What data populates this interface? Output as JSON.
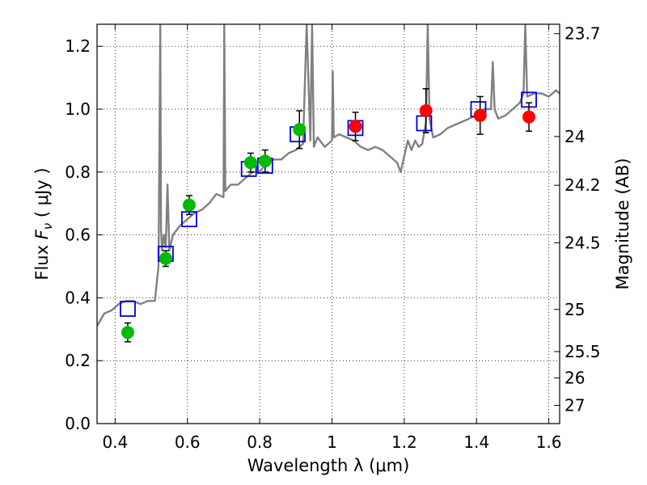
{
  "chart_data": {
    "type": "scatter",
    "xlabel": "Wavelength  λ (μm)",
    "ylabel": "Flux  F_ν  ( μJy )",
    "ylabel_parts": {
      "prefix": "Flux  ",
      "symbol": "F",
      "subscript": "ν",
      "suffix": "  ( μJy )"
    },
    "ylabel_right": "Magnitude (AB)",
    "xlim": [
      0.35,
      1.63
    ],
    "ylim": [
      0.0,
      1.27
    ],
    "grid": true,
    "x_ticks": [
      0.4,
      0.6,
      0.8,
      1.0,
      1.2,
      1.4,
      1.6
    ],
    "x_tick_labels": [
      "0.4",
      "0.6",
      "0.8",
      "1",
      "1.2",
      "1.4",
      "1.6"
    ],
    "y_ticks": [
      0.0,
      0.2,
      0.4,
      0.6,
      0.8,
      1.0,
      1.2
    ],
    "y_tick_labels": [
      "0.0",
      "0.2",
      "0.4",
      "0.6",
      "0.8",
      "1.0",
      "1.2"
    ],
    "right_ticks": [
      {
        "label": "23.7",
        "flux": 1.24
      },
      {
        "label": "24",
        "flux": 0.913
      },
      {
        "label": "24.2",
        "flux": 0.758
      },
      {
        "label": "24.5",
        "flux": 0.575
      },
      {
        "label": "25",
        "flux": 0.363
      },
      {
        "label": "25.5",
        "flux": 0.229
      },
      {
        "label": "26",
        "flux": 0.145
      },
      {
        "label": "27",
        "flux": 0.058
      }
    ],
    "colors": {
      "model": "#808080",
      "green": "#00bb00",
      "red": "#ff0000",
      "box": "#0000dd"
    },
    "series": [
      {
        "name": "model spectrum",
        "kind": "line",
        "x": [
          0.35,
          0.37,
          0.39,
          0.41,
          0.43,
          0.45,
          0.47,
          0.49,
          0.51,
          0.52,
          0.525,
          0.527,
          0.53,
          0.535,
          0.54,
          0.545,
          0.55,
          0.56,
          0.58,
          0.6,
          0.62,
          0.64,
          0.66,
          0.68,
          0.7,
          0.702,
          0.705,
          0.72,
          0.74,
          0.76,
          0.78,
          0.8,
          0.82,
          0.84,
          0.86,
          0.88,
          0.9,
          0.92,
          0.93,
          0.94,
          0.945,
          0.95,
          0.96,
          0.98,
          1.0,
          1.002,
          1.005,
          1.02,
          1.04,
          1.06,
          1.08,
          1.1,
          1.12,
          1.14,
          1.16,
          1.18,
          1.19,
          1.2,
          1.21,
          1.22,
          1.23,
          1.24,
          1.25,
          1.26,
          1.265,
          1.27,
          1.28,
          1.3,
          1.32,
          1.34,
          1.36,
          1.38,
          1.4,
          1.42,
          1.44,
          1.445,
          1.45,
          1.46,
          1.48,
          1.5,
          1.52,
          1.53,
          1.535,
          1.54,
          1.56,
          1.58,
          1.6,
          1.62,
          1.63
        ],
        "y": [
          0.31,
          0.35,
          0.36,
          0.38,
          0.39,
          0.39,
          0.38,
          0.39,
          0.39,
          0.5,
          1.27,
          0.62,
          0.55,
          0.6,
          0.56,
          0.76,
          0.55,
          0.6,
          0.63,
          0.65,
          0.67,
          0.68,
          0.7,
          0.73,
          0.72,
          1.27,
          0.74,
          0.76,
          0.76,
          0.78,
          0.8,
          0.8,
          0.83,
          0.84,
          0.84,
          0.86,
          0.87,
          0.89,
          1.27,
          0.9,
          1.27,
          0.88,
          0.91,
          0.88,
          0.9,
          1.12,
          0.91,
          0.92,
          0.91,
          0.9,
          0.88,
          0.87,
          0.88,
          0.87,
          0.85,
          0.83,
          0.8,
          0.85,
          0.9,
          0.87,
          0.9,
          0.88,
          0.89,
          0.96,
          1.27,
          0.97,
          0.91,
          0.92,
          0.94,
          0.95,
          0.96,
          0.97,
          0.98,
          1.0,
          1.0,
          1.15,
          1.0,
          0.97,
          0.98,
          1.0,
          1.02,
          1.05,
          1.27,
          1.04,
          1.05,
          1.05,
          1.04,
          1.06,
          1.05
        ]
      },
      {
        "name": "observed (green)",
        "kind": "errorbar",
        "x": [
          0.435,
          0.54,
          0.605,
          0.775,
          0.815,
          0.91
        ],
        "y": [
          0.29,
          0.525,
          0.695,
          0.83,
          0.835,
          0.935
        ],
        "err": [
          0.03,
          0.025,
          0.03,
          0.03,
          0.035,
          0.06
        ]
      },
      {
        "name": "observed (red)",
        "kind": "errorbar",
        "x": [
          1.065,
          1.26,
          1.41,
          1.545
        ],
        "y": [
          0.945,
          0.995,
          0.98,
          0.975
        ],
        "err": [
          0.045,
          0.07,
          0.06,
          0.045
        ]
      },
      {
        "name": "model photometry",
        "kind": "boxes",
        "x": [
          0.435,
          0.54,
          0.605,
          0.77,
          0.815,
          0.905,
          1.065,
          1.255,
          1.405,
          1.545
        ],
        "y": [
          0.365,
          0.54,
          0.65,
          0.81,
          0.82,
          0.92,
          0.94,
          0.955,
          1.0,
          1.03
        ]
      }
    ]
  }
}
